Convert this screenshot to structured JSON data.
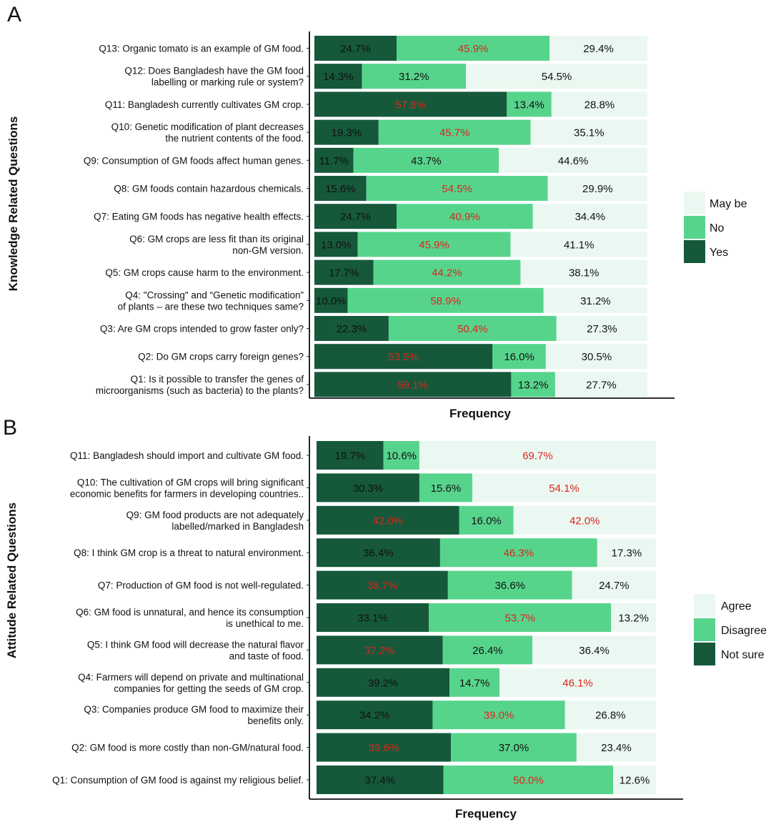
{
  "colors": {
    "yes_dark": "#15593a",
    "no_mid": "#57d48c",
    "maybe_light": "#ebf8f1",
    "red_text": "#d9261c",
    "black_text": "#111111"
  },
  "chart_data": [
    {
      "panel_label": "A",
      "type": "bar",
      "orientation": "horizontal",
      "stacked": true,
      "ylabel": "Knowledge Related Questions",
      "xlabel": "Frequency",
      "legend_position": "right",
      "legend": [
        "May be",
        "No",
        "Yes"
      ],
      "categories": [
        "Q13: Organic tomato is an example of GM food.",
        "Q12: Does Bangladesh have the GM food\nlabelling or marking rule or system?",
        "Q11: Bangladesh currently cultivates GM crop.",
        "Q10: Genetic modification of plant decreases\nthe nutrient contents of the food.",
        "Q9: Consumption of GM foods affect human genes.",
        "Q8: GM foods contain hazardous chemicals.",
        "Q7: Eating GM foods has negative health effects.",
        "Q6: GM crops are less fit than its original\nnon-GM version.",
        "Q5: GM crops cause harm to the environment.",
        "Q4: \"Crossing\" and “Genetic modification”\nof plants – are these two techniques same?",
        "Q3: Are GM crops intended to grow faster only?",
        "Q2: Do GM crops carry foreign genes?",
        "Q1: Is it possible to transfer the genes of\nmicroorganisms (such as bacteria) to the plants?"
      ],
      "series": [
        {
          "name": "Yes",
          "values": [
            24.7,
            14.3,
            57.8,
            19.3,
            11.7,
            15.6,
            24.7,
            13.0,
            17.7,
            10.0,
            22.3,
            53.5,
            59.1
          ],
          "labels": [
            "24.7%",
            "14.3%",
            "57.8%",
            "19.3%",
            "11.7%",
            "15.6%",
            "24.7%",
            "13.0%",
            "17.7%",
            "10.0%",
            "22.3%",
            "53.5%",
            "59.1%"
          ]
        },
        {
          "name": "No",
          "values": [
            45.9,
            31.2,
            13.4,
            45.7,
            43.7,
            54.5,
            40.9,
            45.9,
            44.2,
            58.9,
            50.4,
            16.0,
            13.2
          ],
          "labels": [
            "45.9%",
            "31.2%",
            "13.4%",
            "45.7%",
            "43.7%",
            "54.5%",
            "40.9%",
            "45.9%",
            "44.2%",
            "58.9%",
            "50.4%",
            "16.0%",
            "13.2%"
          ]
        },
        {
          "name": "May be",
          "values": [
            29.4,
            54.5,
            28.8,
            35.1,
            44.6,
            29.9,
            34.4,
            41.1,
            38.1,
            31.2,
            27.3,
            30.5,
            27.7
          ],
          "labels": [
            "29.4%",
            "54.5%",
            "28.8%",
            "35.1%",
            "44.6%",
            "29.9%",
            "34.4%",
            "41.1%",
            "38.1%",
            "31.2%",
            "27.3%",
            "30.5%",
            "27.7%"
          ]
        }
      ]
    },
    {
      "panel_label": "B",
      "type": "bar",
      "orientation": "horizontal",
      "stacked": true,
      "ylabel": "Attitude Related Questions",
      "xlabel": "Frequency",
      "legend_position": "right",
      "legend": [
        "Agree",
        "Disagree",
        "Not sure"
      ],
      "categories": [
        "Q11: Bangladesh should import and cultivate GM food.",
        "Q10: The cultivation of GM crops will bring  significant\neconomic benefits for farmers in developing countries..",
        "Q9: GM food products are not adequately\nlabelled/marked in Bangladesh",
        "Q8: I think GM crop is a threat to natural environment.",
        "Q7: Production of GM food is not well-regulated.",
        "Q6: GM food is unnatural, and hence its consumption\nis unethical to me.",
        "Q5: I think GM food will decrease the natural flavor\nand taste of food.",
        "Q4: Farmers will depend on private and multinational\ncompanies for getting the seeds of GM crop.",
        "Q3: Companies produce GM food to maximize their\nbenefits only.",
        "Q2: GM food is more costly than non-GM/natural food.",
        "Q1: Consumption of GM food is against my religious belief."
      ],
      "series": [
        {
          "name": "Not sure",
          "values": [
            19.7,
            30.3,
            42.0,
            36.4,
            38.7,
            33.1,
            37.2,
            39.2,
            34.2,
            39.6,
            37.4
          ],
          "labels": [
            "19.7%",
            "30.3%",
            "42.0%",
            "36.4%",
            "38.7%",
            "33.1%",
            "37.2%",
            "39.2%",
            "34.2%",
            "39.6%",
            "37.4%"
          ]
        },
        {
          "name": "Disagree",
          "values": [
            10.6,
            15.6,
            16.0,
            46.3,
            36.6,
            53.7,
            26.4,
            14.7,
            39.0,
            37.0,
            50.0
          ],
          "labels": [
            "10.6%",
            "15.6%",
            "16.0%",
            "46.3%",
            "36.6%",
            "53.7%",
            "26.4%",
            "14.7%",
            "39.0%",
            "37.0%",
            "50.0%"
          ]
        },
        {
          "name": "Agree",
          "values": [
            69.7,
            54.1,
            42.0,
            17.3,
            24.7,
            13.2,
            36.4,
            46.1,
            26.8,
            23.4,
            12.6
          ],
          "labels": [
            "69.7%",
            "54.1%",
            "42.0%",
            "17.3%",
            "24.7%",
            "13.2%",
            "36.4%",
            "46.1%",
            "26.8%",
            "23.4%",
            "12.6%"
          ]
        }
      ]
    }
  ]
}
